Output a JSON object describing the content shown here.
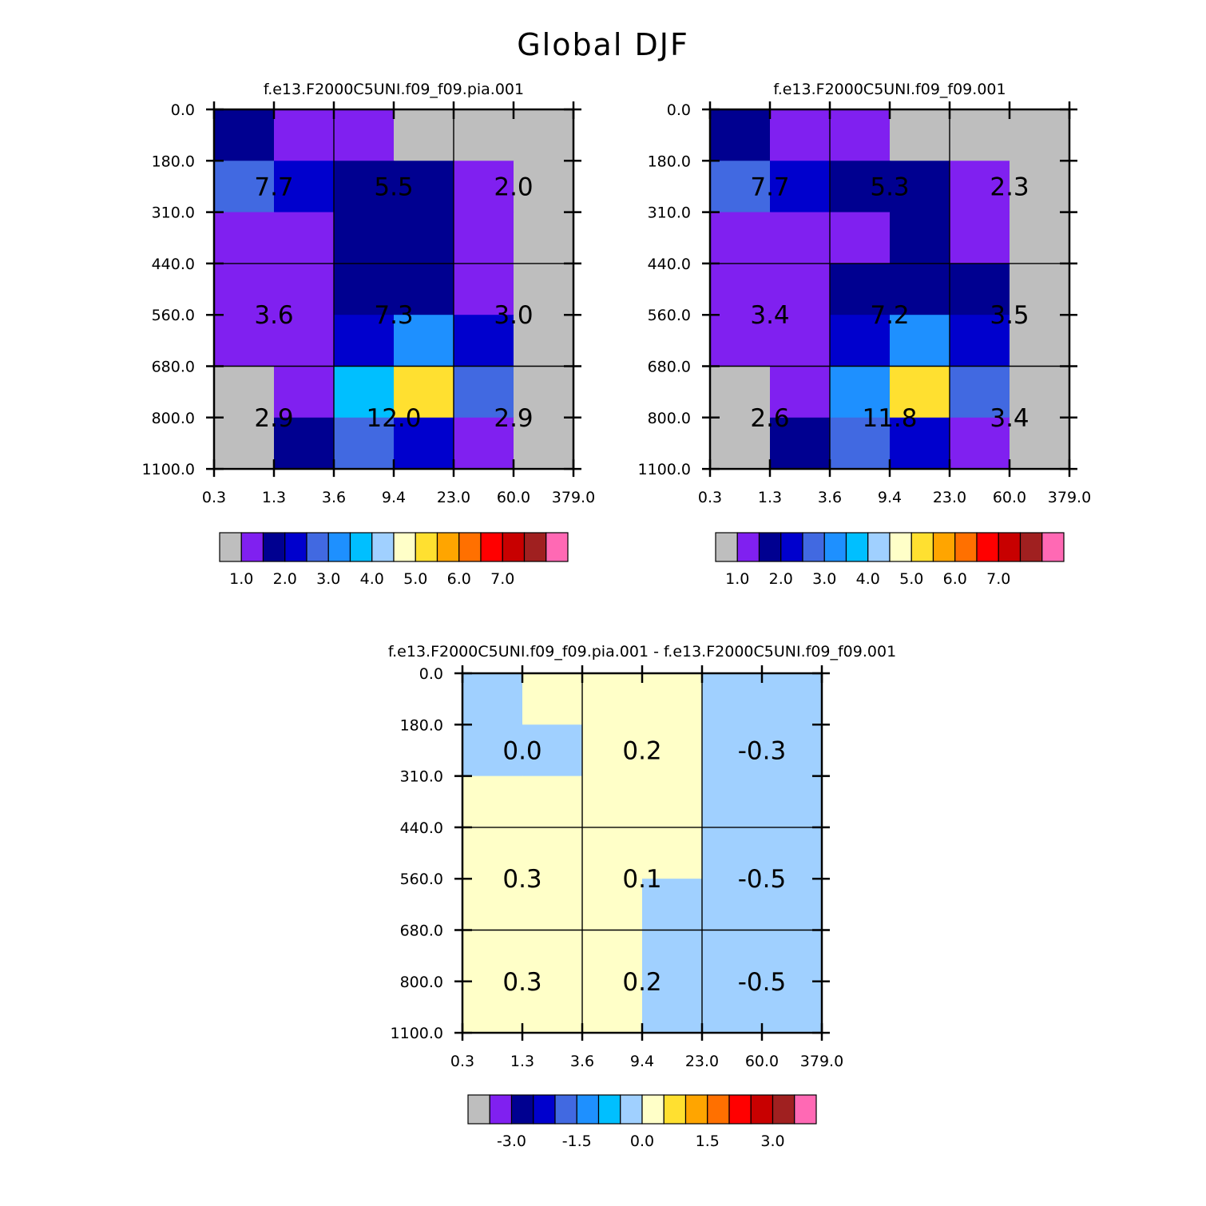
{
  "page": {
    "title": "Global DJF"
  },
  "chart_data": [
    {
      "type": "heatmap",
      "title": "f.e13.F2000C5UNI.f09_f09.pia.001",
      "xlabel": "",
      "ylabel": "",
      "x_ticks": [
        "0.3",
        "1.3",
        "3.6",
        "9.4",
        "23.0",
        "60.0",
        "379.0"
      ],
      "y_ticks": [
        "0.0",
        "180.0",
        "310.0",
        "440.0",
        "560.0",
        "680.0",
        "800.0",
        "1100.0"
      ],
      "grid": "3x3 boxes",
      "cell_colors": [
        [
          "#000090",
          "#8020F0",
          "#8020F0",
          "#BEBEBE",
          "#BEBEBE",
          "#BEBEBE"
        ],
        [
          "#4169E1",
          "#0000CD",
          "#000090",
          "#000090",
          "#8020F0",
          "#BEBEBE"
        ],
        [
          "#8020F0",
          "#8020F0",
          "#000090",
          "#000090",
          "#8020F0",
          "#BEBEBE"
        ],
        [
          "#8020F0",
          "#8020F0",
          "#000090",
          "#000090",
          "#8020F0",
          "#BEBEBE"
        ],
        [
          "#8020F0",
          "#8020F0",
          "#0000CD",
          "#1E90FF",
          "#0000CD",
          "#BEBEBE"
        ],
        [
          "#BEBEBE",
          "#8020F0",
          "#00BFFF",
          "#FFE030",
          "#4169E1",
          "#BEBEBE"
        ],
        [
          "#BEBEBE",
          "#000090",
          "#4169E1",
          "#0000CD",
          "#8020F0",
          "#BEBEBE"
        ]
      ],
      "box_values": [
        [
          "7.7",
          "5.5",
          "2.0"
        ],
        [
          "3.6",
          "7.3",
          "3.0"
        ],
        [
          "2.9",
          "12.0",
          "2.9"
        ]
      ],
      "colorbar": {
        "colors": [
          "#BEBEBE",
          "#8020F0",
          "#000090",
          "#0000CD",
          "#4169E1",
          "#1E90FF",
          "#00BFFF",
          "#A0D0FF",
          "#FFFFC8",
          "#FFE030",
          "#FFA500",
          "#FF7000",
          "#FF0000",
          "#C80000",
          "#A02020",
          "#FF69B4"
        ],
        "labels": [
          "1.0",
          "2.0",
          "3.0",
          "4.0",
          "5.0",
          "6.0",
          "7.0"
        ]
      }
    },
    {
      "type": "heatmap",
      "title": "f.e13.F2000C5UNI.f09_f09.001",
      "xlabel": "",
      "ylabel": "",
      "x_ticks": [
        "0.3",
        "1.3",
        "3.6",
        "9.4",
        "23.0",
        "60.0",
        "379.0"
      ],
      "y_ticks": [
        "0.0",
        "180.0",
        "310.0",
        "440.0",
        "560.0",
        "680.0",
        "800.0",
        "1100.0"
      ],
      "grid": "3x3 boxes",
      "cell_colors": [
        [
          "#000090",
          "#8020F0",
          "#8020F0",
          "#BEBEBE",
          "#BEBEBE",
          "#BEBEBE"
        ],
        [
          "#4169E1",
          "#0000CD",
          "#000090",
          "#000090",
          "#8020F0",
          "#BEBEBE"
        ],
        [
          "#8020F0",
          "#8020F0",
          "#8020F0",
          "#000090",
          "#8020F0",
          "#BEBEBE"
        ],
        [
          "#8020F0",
          "#8020F0",
          "#000090",
          "#000090",
          "#000090",
          "#BEBEBE"
        ],
        [
          "#8020F0",
          "#8020F0",
          "#0000CD",
          "#1E90FF",
          "#0000CD",
          "#BEBEBE"
        ],
        [
          "#BEBEBE",
          "#8020F0",
          "#1E90FF",
          "#FFE030",
          "#4169E1",
          "#BEBEBE"
        ],
        [
          "#BEBEBE",
          "#000090",
          "#4169E1",
          "#0000CD",
          "#8020F0",
          "#BEBEBE"
        ]
      ],
      "box_values": [
        [
          "7.7",
          "5.3",
          "2.3"
        ],
        [
          "3.4",
          "7.2",
          "3.5"
        ],
        [
          "2.6",
          "11.8",
          "3.4"
        ]
      ],
      "colorbar": {
        "colors": [
          "#BEBEBE",
          "#8020F0",
          "#000090",
          "#0000CD",
          "#4169E1",
          "#1E90FF",
          "#00BFFF",
          "#A0D0FF",
          "#FFFFC8",
          "#FFE030",
          "#FFA500",
          "#FF7000",
          "#FF0000",
          "#C80000",
          "#A02020",
          "#FF69B4"
        ],
        "labels": [
          "1.0",
          "2.0",
          "3.0",
          "4.0",
          "5.0",
          "6.0",
          "7.0"
        ]
      }
    },
    {
      "type": "heatmap",
      "title": "f.e13.F2000C5UNI.f09_f09.pia.001 - f.e13.F2000C5UNI.f09_f09.001",
      "xlabel": "",
      "ylabel": "",
      "x_ticks": [
        "0.3",
        "1.3",
        "3.6",
        "9.4",
        "23.0",
        "60.0",
        "379.0"
      ],
      "y_ticks": [
        "0.0",
        "180.0",
        "310.0",
        "440.0",
        "560.0",
        "680.0",
        "800.0",
        "1100.0"
      ],
      "grid": "3x3 boxes",
      "cell_colors": [
        [
          "#A0D0FF",
          "#FFFFC8",
          "#FFFFC8",
          "#FFFFC8",
          "#A0D0FF",
          "#A0D0FF"
        ],
        [
          "#A0D0FF",
          "#A0D0FF",
          "#FFFFC8",
          "#FFFFC8",
          "#A0D0FF",
          "#A0D0FF"
        ],
        [
          "#FFFFC8",
          "#FFFFC8",
          "#FFFFC8",
          "#FFFFC8",
          "#A0D0FF",
          "#A0D0FF"
        ],
        [
          "#FFFFC8",
          "#FFFFC8",
          "#FFFFC8",
          "#FFFFC8",
          "#A0D0FF",
          "#A0D0FF"
        ],
        [
          "#FFFFC8",
          "#FFFFC8",
          "#FFFFC8",
          "#A0D0FF",
          "#A0D0FF",
          "#A0D0FF"
        ],
        [
          "#FFFFC8",
          "#FFFFC8",
          "#FFFFC8",
          "#A0D0FF",
          "#A0D0FF",
          "#A0D0FF"
        ],
        [
          "#FFFFC8",
          "#FFFFC8",
          "#FFFFC8",
          "#A0D0FF",
          "#A0D0FF",
          "#A0D0FF"
        ]
      ],
      "box_values": [
        [
          "0.0",
          "0.2",
          "-0.3"
        ],
        [
          "0.3",
          "0.1",
          "-0.5"
        ],
        [
          "0.3",
          "0.2",
          "-0.5"
        ]
      ],
      "colorbar": {
        "colors": [
          "#BEBEBE",
          "#8020F0",
          "#000090",
          "#0000CD",
          "#4169E1",
          "#1E90FF",
          "#00BFFF",
          "#A0D0FF",
          "#FFFFC8",
          "#FFE030",
          "#FFA500",
          "#FF7000",
          "#FF0000",
          "#C80000",
          "#A02020",
          "#FF69B4"
        ],
        "labels": [
          "-3.0",
          "-1.5",
          "0.0",
          "1.5",
          "3.0"
        ]
      }
    }
  ]
}
